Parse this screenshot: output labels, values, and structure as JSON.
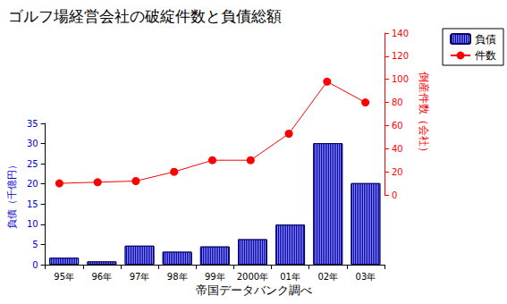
{
  "chart_data": {
    "type": "bar",
    "title": "ゴルフ場経営会社の破綻件数と負債総額",
    "categories": [
      "95年",
      "96年",
      "97年",
      "98年",
      "99年",
      "2000年",
      "01年",
      "02年",
      "03年"
    ],
    "series": [
      {
        "name": "負債",
        "type": "bar",
        "color": "#0000cc",
        "values": [
          1.7,
          0.8,
          4.7,
          3.2,
          4.5,
          6.3,
          9.9,
          30.1,
          20.2
        ]
      },
      {
        "name": "件数",
        "type": "line",
        "color": "#ff0000",
        "marker": "circle",
        "axis": "y2",
        "values": [
          10,
          11,
          12,
          20,
          30,
          30,
          53,
          98,
          80
        ]
      }
    ],
    "y_label": "負債（千億円）",
    "y2_label": "倒産件数（会社）",
    "ylim": [
      0,
      35
    ],
    "yticks": [
      0,
      5,
      10,
      15,
      20,
      25,
      30,
      35
    ],
    "y2lim": [
      0,
      140
    ],
    "y2ticks": [
      0,
      20,
      40,
      60,
      80,
      100,
      120,
      140
    ],
    "source": "帝国データバンク調べ",
    "legend": "upper right",
    "grid": false
  }
}
